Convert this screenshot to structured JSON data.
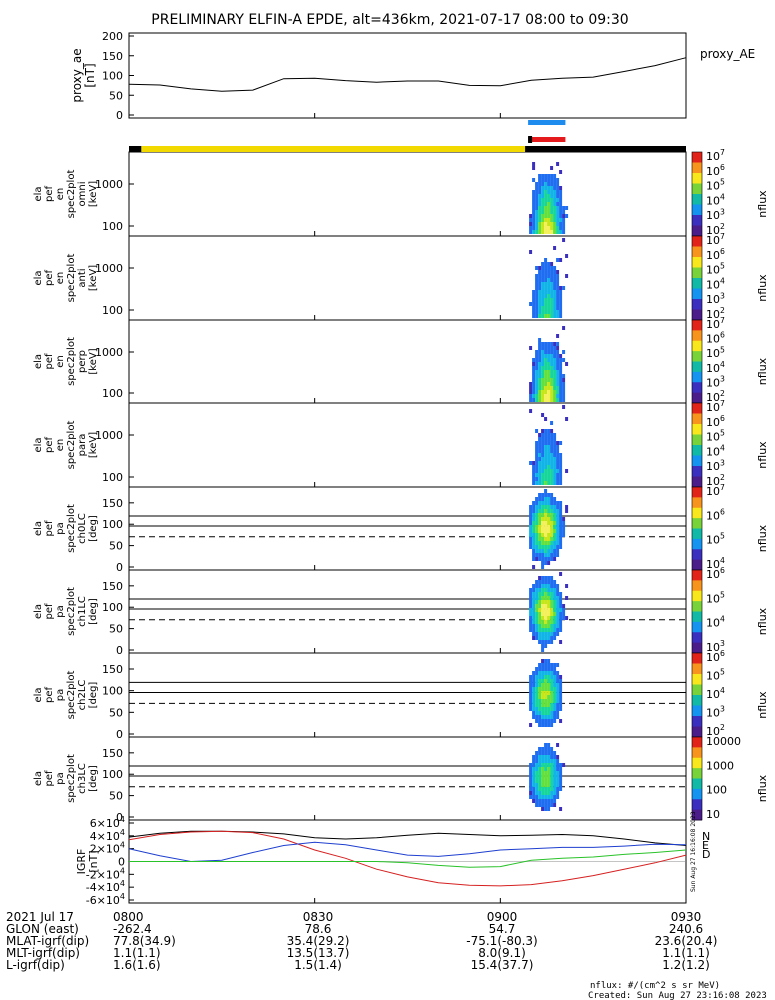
{
  "title": "PRELIMINARY ELFIN-A EPDE, alt=436km, 2021-07-17 08:00 to 09:30",
  "colors": {
    "sci_blue": "#1E8BEF",
    "sci_red": "#E41A1C",
    "ephem_yellow": "#F2DA00",
    "ephem_black": "#000000",
    "bfield_x": "#d62020",
    "bfield_y": "#1e3fcf",
    "bfield_z": "#29c229",
    "bfield_total": "#000000"
  },
  "chart_data": [
    {
      "type": "line",
      "ylabel": "proxy_ae [nT]",
      "legend": "proxy_AE",
      "yticks": [
        "0",
        "50",
        "100",
        "150",
        "200"
      ],
      "ylim": [
        0,
        200
      ],
      "x": [
        "08:00",
        "08:05",
        "08:10",
        "08:15",
        "08:20",
        "08:25",
        "08:30",
        "08:35",
        "08:40",
        "08:45",
        "08:50",
        "08:55",
        "09:00",
        "09:05",
        "09:10",
        "09:15",
        "09:20",
        "09:25",
        "09:30"
      ],
      "values": [
        78,
        76,
        66,
        60,
        63,
        92,
        93,
        87,
        83,
        86,
        86,
        75,
        74,
        88,
        93,
        96,
        110,
        125,
        145
      ]
    },
    {
      "type": "bar",
      "description_label": "science zone and ephemeris status bars",
      "segments": [
        {
          "name": "ephemeris-black",
          "from": "08:00",
          "to": "08:02",
          "color": "black"
        },
        {
          "name": "ephemeris-yellow",
          "from": "08:02",
          "to": "09:04",
          "color": "yellow"
        },
        {
          "name": "ephemeris-black",
          "from": "09:04",
          "to": "09:30",
          "color": "black"
        }
      ],
      "science_zone": {
        "from": "09:04",
        "to": "09:11"
      }
    },
    {
      "type": "heatmap",
      "panels": [
        {
          "labels": [
            "ela",
            "pef",
            "en",
            "spec2plot",
            "omni",
            "[keV]"
          ],
          "yticks": [
            "100",
            "1000"
          ],
          "cbar": [
            "10^7",
            "10^6",
            "10^5",
            "10^4",
            "10^3",
            "10^2"
          ],
          "intensity": 1.0
        },
        {
          "labels": [
            "ela",
            "pef",
            "en",
            "spec2plot",
            "anti",
            "[keV]"
          ],
          "yticks": [
            "100",
            "1000"
          ],
          "cbar": [
            "10^7",
            "10^6",
            "10^5",
            "10^4",
            "10^3",
            "10^2"
          ],
          "intensity": 0.6
        },
        {
          "labels": [
            "ela",
            "pef",
            "en",
            "spec2plot",
            "perp",
            "[keV]"
          ],
          "yticks": [
            "100",
            "1000"
          ],
          "cbar": [
            "10^7",
            "10^6",
            "10^5",
            "10^4",
            "10^3",
            "10^2"
          ],
          "intensity": 1.0
        },
        {
          "labels": [
            "ela",
            "pef",
            "en",
            "spec2plot",
            "para",
            "[keV]"
          ],
          "yticks": [
            "100",
            "1000"
          ],
          "cbar": [
            "10^7",
            "10^6",
            "10^5",
            "10^4",
            "10^3",
            "10^2"
          ],
          "intensity": 0.55
        },
        {
          "labels": [
            "ela",
            "pef",
            "pa",
            "spec2plot",
            "ch0LC",
            "[deg]"
          ],
          "yticks": [
            "0",
            "50",
            "100",
            "150"
          ],
          "cbar": [
            "10^7",
            "10^6",
            "10^5",
            "10^4"
          ],
          "intensity": 0.95
        },
        {
          "labels": [
            "ela",
            "pef",
            "pa",
            "spec2plot",
            "ch1LC",
            "[deg]"
          ],
          "yticks": [
            "0",
            "50",
            "100",
            "150"
          ],
          "cbar": [
            "10^6",
            "10^5",
            "10^4",
            "10^3"
          ],
          "intensity": 0.9
        },
        {
          "labels": [
            "ela",
            "pef",
            "pa",
            "spec2plot",
            "ch2LC",
            "[deg]"
          ],
          "yticks": [
            "0",
            "50",
            "100",
            "150"
          ],
          "cbar": [
            "10^6",
            "10^5",
            "10^4",
            "10^3",
            "10^2"
          ],
          "intensity": 0.75
        },
        {
          "labels": [
            "ela",
            "pef",
            "pa",
            "spec2plot",
            "ch3LC",
            "[deg]"
          ],
          "yticks": [
            "0",
            "50",
            "100",
            "150"
          ],
          "cbar": [
            "10000",
            "1000",
            "100",
            "10"
          ],
          "intensity": 0.65
        }
      ],
      "cbar_label": "nflux"
    },
    {
      "type": "line",
      "ylabel": "IGRF [nT]",
      "ylim": [
        -60000,
        60000
      ],
      "yticks": [
        "-6×10^4",
        "-4×10^4",
        "-2×10^4",
        "0",
        "2×10^4",
        "4×10^4",
        "6×10^4"
      ],
      "legend_letters": [
        "N",
        "E",
        "D"
      ],
      "x": [
        "08:00",
        "08:05",
        "08:10",
        "08:15",
        "08:20",
        "08:25",
        "08:30",
        "08:35",
        "08:40",
        "08:45",
        "08:50",
        "08:55",
        "09:00",
        "09:05",
        "09:10",
        "09:15",
        "09:20",
        "09:25",
        "09:30"
      ],
      "series": [
        {
          "key": "total",
          "values": [
            38000,
            44000,
            47000,
            47000,
            46000,
            43000,
            37000,
            35000,
            37000,
            41000,
            44000,
            42000,
            40000,
            41000,
            42000,
            40000,
            35000,
            29000,
            25000
          ]
        },
        {
          "key": "x",
          "values": [
            34000,
            42000,
            46000,
            47000,
            45000,
            35000,
            18000,
            5000,
            -12000,
            -24000,
            -33000,
            -37000,
            -38000,
            -36000,
            -30000,
            -22000,
            -12000,
            -2000,
            10000
          ]
        },
        {
          "key": "y",
          "values": [
            20000,
            9000,
            0,
            2000,
            14000,
            25000,
            30000,
            26000,
            18000,
            10000,
            8000,
            12000,
            18000,
            20000,
            22000,
            22000,
            24000,
            27000,
            26000
          ]
        },
        {
          "key": "z",
          "values": [
            0,
            0,
            0,
            0,
            0,
            0,
            0,
            0,
            0,
            -2000,
            -6000,
            -9000,
            -8000,
            2000,
            5000,
            7000,
            11000,
            14000,
            18000
          ]
        }
      ]
    }
  ],
  "footer": {
    "xaxis_labels": [
      "0800",
      "0830",
      "0900",
      "0930"
    ],
    "rows": [
      {
        "label": "2021 Jul 17",
        "values": [
          "0800",
          "0830",
          "0900",
          "0930"
        ]
      },
      {
        "label": "GLON (east)",
        "values": [
          "-262.4",
          "78.6",
          "54.7",
          "240.6"
        ]
      },
      {
        "label": "MLAT-igrf(dip)",
        "values": [
          "77.8(34.9)",
          "35.4(29.2)",
          "-75.1(-80.3)",
          "23.6(20.4)"
        ]
      },
      {
        "label": "MLT-igrf(dip)",
        "values": [
          "1.1(1.1)",
          "13.5(13.7)",
          "8.0(9.1)",
          "1.1(1.1)"
        ]
      },
      {
        "label": "L-igrf(dip)",
        "values": [
          "1.6(1.6)",
          "1.5(1.4)",
          "15.4(37.7)",
          "1.2(1.2)"
        ]
      }
    ],
    "units_note": "nflux: #/(cm^2 s sr MeV)",
    "created": "Created: Sun Aug 27 23:16:08 2023",
    "side_stamp": "Sun Aug 27 16:16:08 2023"
  }
}
